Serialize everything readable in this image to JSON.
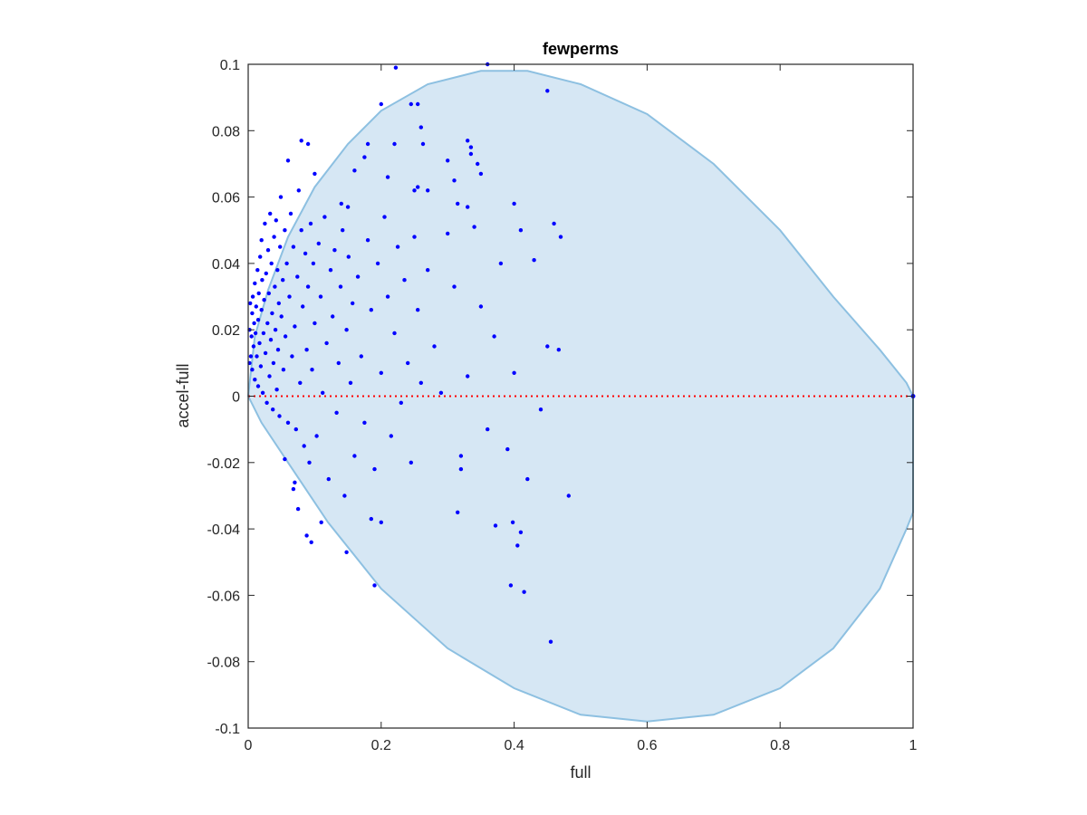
{
  "chart_data": {
    "type": "scatter",
    "title": "fewperms",
    "xlabel": "full",
    "ylabel": "accel-full",
    "xlim": [
      0,
      1
    ],
    "ylim": [
      -0.1,
      0.1
    ],
    "xticks": [
      0,
      0.2,
      0.4,
      0.6,
      0.8,
      1
    ],
    "xtick_labels": [
      "0",
      "0.2",
      "0.4",
      "0.6",
      "0.8",
      "1"
    ],
    "yticks": [
      -0.1,
      -0.08,
      -0.06,
      -0.04,
      -0.02,
      0,
      0.02,
      0.04,
      0.06,
      0.08,
      0.1
    ],
    "ytick_labels": [
      "-0.1",
      "-0.08",
      "-0.06",
      "-0.04",
      "-0.02",
      "0",
      "0.02",
      "0.04",
      "0.06",
      "0.08",
      "0.1"
    ],
    "grid": false,
    "colors": {
      "points": "#0000ff",
      "region_fill": "#d6e7f4",
      "region_edge": "#8dc0e1",
      "zero_line": "#ff0000",
      "axes": "#262626"
    },
    "region": {
      "shape": "closed curve (ellipse-like boundary)",
      "boundary": [
        [
          0.0,
          0.0
        ],
        [
          0.01,
          0.018
        ],
        [
          0.03,
          0.032
        ],
        [
          0.06,
          0.048
        ],
        [
          0.1,
          0.063
        ],
        [
          0.15,
          0.076
        ],
        [
          0.2,
          0.086
        ],
        [
          0.27,
          0.094
        ],
        [
          0.35,
          0.098
        ],
        [
          0.42,
          0.098
        ],
        [
          0.5,
          0.094
        ],
        [
          0.6,
          0.085
        ],
        [
          0.7,
          0.07
        ],
        [
          0.8,
          0.05
        ],
        [
          0.88,
          0.03
        ],
        [
          0.95,
          0.014
        ],
        [
          0.99,
          0.004
        ],
        [
          1.0,
          0.0
        ],
        [
          1.0,
          -0.035
        ],
        [
          0.99,
          -0.04
        ],
        [
          0.95,
          -0.058
        ],
        [
          0.88,
          -0.076
        ],
        [
          0.8,
          -0.088
        ],
        [
          0.7,
          -0.096
        ],
        [
          0.6,
          -0.098
        ],
        [
          0.5,
          -0.096
        ],
        [
          0.4,
          -0.088
        ],
        [
          0.3,
          -0.076
        ],
        [
          0.2,
          -0.058
        ],
        [
          0.12,
          -0.038
        ],
        [
          0.06,
          -0.02
        ],
        [
          0.02,
          -0.008
        ],
        [
          0.005,
          -0.002
        ]
      ]
    },
    "reference_line": {
      "y": 0,
      "style": "dotted"
    },
    "series": [
      {
        "values": [
          [
            0.002,
            0.01
          ],
          [
            0.002,
            0.02
          ],
          [
            0.003,
            0.028
          ],
          [
            0.004,
            0.012
          ],
          [
            0.005,
            0.018
          ],
          [
            0.006,
            0.008
          ],
          [
            0.006,
            0.025
          ],
          [
            0.007,
            0.03
          ],
          [
            0.008,
            0.015
          ],
          [
            0.009,
            0.022
          ],
          [
            0.01,
            0.005
          ],
          [
            0.01,
            0.034
          ],
          [
            0.011,
            0.019
          ],
          [
            0.012,
            0.027
          ],
          [
            0.013,
            0.012
          ],
          [
            0.014,
            0.038
          ],
          [
            0.015,
            0.003
          ],
          [
            0.015,
            0.023
          ],
          [
            0.016,
            0.031
          ],
          [
            0.017,
            0.016
          ],
          [
            0.018,
            0.042
          ],
          [
            0.019,
            0.009
          ],
          [
            0.02,
            0.026
          ],
          [
            0.02,
            0.047
          ],
          [
            0.021,
            0.035
          ],
          [
            0.022,
            0.001
          ],
          [
            0.023,
            0.019
          ],
          [
            0.024,
            0.029
          ],
          [
            0.025,
            0.052
          ],
          [
            0.026,
            0.013
          ],
          [
            0.027,
            0.037
          ],
          [
            0.028,
            -0.002
          ],
          [
            0.029,
            0.022
          ],
          [
            0.03,
            0.044
          ],
          [
            0.031,
            0.031
          ],
          [
            0.032,
            0.006
          ],
          [
            0.033,
            0.055
          ],
          [
            0.034,
            0.017
          ],
          [
            0.035,
            0.04
          ],
          [
            0.036,
            0.025
          ],
          [
            0.037,
            -0.004
          ],
          [
            0.038,
            0.01
          ],
          [
            0.039,
            0.048
          ],
          [
            0.04,
            0.033
          ],
          [
            0.041,
            0.02
          ],
          [
            0.042,
            0.053
          ],
          [
            0.043,
            0.002
          ],
          [
            0.044,
            0.038
          ],
          [
            0.045,
            0.014
          ],
          [
            0.046,
            0.028
          ],
          [
            0.047,
            -0.006
          ],
          [
            0.048,
            0.045
          ],
          [
            0.049,
            0.06
          ],
          [
            0.05,
            0.024
          ],
          [
            0.052,
            0.035
          ],
          [
            0.053,
            0.008
          ],
          [
            0.055,
            0.05
          ],
          [
            0.056,
            0.018
          ],
          [
            0.058,
            0.04
          ],
          [
            0.06,
            -0.008
          ],
          [
            0.062,
            0.03
          ],
          [
            0.064,
            0.055
          ],
          [
            0.066,
            0.012
          ],
          [
            0.068,
            0.045
          ],
          [
            0.07,
            0.021
          ],
          [
            0.072,
            -0.01
          ],
          [
            0.074,
            0.036
          ],
          [
            0.076,
            0.062
          ],
          [
            0.078,
            0.004
          ],
          [
            0.08,
            0.05
          ],
          [
            0.082,
            0.027
          ],
          [
            0.084,
            -0.015
          ],
          [
            0.086,
            0.043
          ],
          [
            0.088,
            0.014
          ],
          [
            0.09,
            0.033
          ],
          [
            0.092,
            -0.02
          ],
          [
            0.094,
            0.052
          ],
          [
            0.096,
            0.008
          ],
          [
            0.098,
            0.04
          ],
          [
            0.1,
            0.022
          ],
          [
            0.103,
            -0.012
          ],
          [
            0.106,
            0.046
          ],
          [
            0.109,
            0.03
          ],
          [
            0.112,
            0.001
          ],
          [
            0.115,
            0.054
          ],
          [
            0.118,
            0.016
          ],
          [
            0.121,
            -0.025
          ],
          [
            0.124,
            0.038
          ],
          [
            0.127,
            0.024
          ],
          [
            0.13,
            0.044
          ],
          [
            0.133,
            -0.005
          ],
          [
            0.136,
            0.01
          ],
          [
            0.139,
            0.033
          ],
          [
            0.142,
            0.05
          ],
          [
            0.145,
            -0.03
          ],
          [
            0.148,
            0.02
          ],
          [
            0.151,
            0.042
          ],
          [
            0.154,
            0.004
          ],
          [
            0.157,
            0.028
          ],
          [
            0.16,
            -0.018
          ],
          [
            0.165,
            0.036
          ],
          [
            0.17,
            0.012
          ],
          [
            0.175,
            -0.008
          ],
          [
            0.18,
            0.047
          ],
          [
            0.185,
            0.026
          ],
          [
            0.19,
            -0.022
          ],
          [
            0.195,
            0.04
          ],
          [
            0.2,
            0.007
          ],
          [
            0.205,
            0.054
          ],
          [
            0.21,
            0.03
          ],
          [
            0.215,
            -0.012
          ],
          [
            0.22,
            0.019
          ],
          [
            0.225,
            0.045
          ],
          [
            0.23,
            -0.002
          ],
          [
            0.235,
            0.035
          ],
          [
            0.24,
            0.01
          ],
          [
            0.245,
            -0.02
          ],
          [
            0.25,
            0.048
          ],
          [
            0.255,
            0.026
          ],
          [
            0.26,
            0.004
          ],
          [
            0.27,
            0.038
          ],
          [
            0.28,
            0.015
          ],
          [
            0.29,
            0.001
          ],
          [
            0.3,
            0.049
          ],
          [
            0.31,
            0.033
          ],
          [
            0.32,
            -0.018
          ],
          [
            0.33,
            0.006
          ],
          [
            0.34,
            0.051
          ],
          [
            0.35,
            0.027
          ],
          [
            0.36,
            -0.01
          ],
          [
            0.37,
            0.018
          ],
          [
            0.38,
            0.04
          ],
          [
            0.39,
            -0.016
          ],
          [
            0.4,
            0.007
          ],
          [
            0.41,
            0.05
          ],
          [
            0.42,
            -0.025
          ],
          [
            0.43,
            0.041
          ],
          [
            0.44,
            -0.004
          ],
          [
            0.45,
            0.015
          ],
          [
            0.46,
            0.052
          ],
          [
            0.47,
            0.048
          ],
          [
            0.467,
            0.014
          ],
          [
            0.482,
            -0.03
          ],
          [
            0.455,
            -0.074
          ],
          [
            0.415,
            -0.059
          ],
          [
            0.395,
            -0.057
          ],
          [
            0.405,
            -0.045
          ],
          [
            0.41,
            -0.041
          ],
          [
            0.398,
            -0.038
          ],
          [
            0.372,
            -0.039
          ],
          [
            0.315,
            -0.035
          ],
          [
            0.32,
            -0.022
          ],
          [
            0.2,
            -0.038
          ],
          [
            0.19,
            -0.057
          ],
          [
            0.185,
            -0.037
          ],
          [
            0.148,
            -0.047
          ],
          [
            0.11,
            -0.038
          ],
          [
            0.095,
            -0.044
          ],
          [
            0.088,
            -0.042
          ],
          [
            0.075,
            -0.034
          ],
          [
            0.068,
            -0.028
          ],
          [
            0.07,
            -0.026
          ],
          [
            0.055,
            -0.019
          ],
          [
            0.45,
            0.092
          ],
          [
            0.36,
            0.1
          ],
          [
            0.222,
            0.099
          ],
          [
            0.245,
            0.088
          ],
          [
            0.2,
            0.088
          ],
          [
            0.255,
            0.088
          ],
          [
            0.09,
            0.076
          ],
          [
            0.08,
            0.077
          ],
          [
            0.06,
            0.071
          ],
          [
            0.18,
            0.076
          ],
          [
            0.175,
            0.072
          ],
          [
            0.22,
            0.076
          ],
          [
            0.26,
            0.081
          ],
          [
            0.263,
            0.076
          ],
          [
            0.33,
            0.077
          ],
          [
            0.335,
            0.073
          ],
          [
            0.345,
            0.07
          ],
          [
            0.35,
            0.067
          ],
          [
            0.1,
            0.067
          ],
          [
            0.16,
            0.068
          ],
          [
            0.21,
            0.066
          ],
          [
            0.25,
            0.062
          ],
          [
            0.255,
            0.063
          ],
          [
            0.27,
            0.062
          ],
          [
            0.3,
            0.071
          ],
          [
            0.31,
            0.065
          ],
          [
            0.335,
            0.075
          ],
          [
            0.315,
            0.058
          ],
          [
            0.33,
            0.057
          ],
          [
            0.14,
            0.058
          ],
          [
            0.15,
            0.057
          ],
          [
            0.4,
            0.058
          ]
        ]
      }
    ]
  }
}
